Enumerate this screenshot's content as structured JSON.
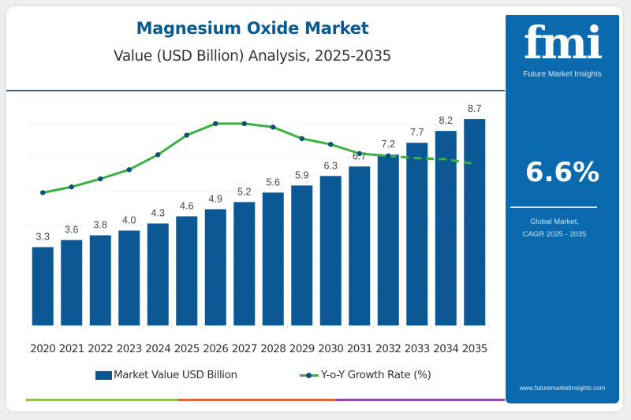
{
  "header": {
    "title": "Magnesium Oxide Market",
    "subtitle": "Value (USD Billion) Analysis, 2025-2035"
  },
  "brand": {
    "logo_text": "fmi",
    "logo_subtitle": "Future Market Insights",
    "website": "www.futuremarketinsights.com",
    "panel_color": "#0b6aae"
  },
  "kpi": {
    "value": "6.6%",
    "label_line1": "Global Market,",
    "label_line2": "CAGR 2025 - 2035"
  },
  "accent_colors": [
    "#8bc34a",
    "#e0673a",
    "#8e44ad"
  ],
  "chart_data": {
    "type": "bar",
    "title": "Magnesium Oxide Market",
    "subtitle": "Value (USD Billion) Analysis, 2025-2035",
    "xlabel": "",
    "ylabel": "",
    "categories": [
      "2020",
      "2021",
      "2022",
      "2023",
      "2024",
      "2025",
      "2026",
      "2027",
      "2028",
      "2029",
      "2030",
      "2031",
      "2032",
      "2033",
      "2034",
      "2035"
    ],
    "series": [
      {
        "name": "Market Value USD Billion",
        "type": "bar",
        "color": "#0b5894",
        "values": [
          3.3,
          3.6,
          3.8,
          4.0,
          4.3,
          4.6,
          4.9,
          5.2,
          5.6,
          5.9,
          6.3,
          6.7,
          7.2,
          7.7,
          8.2,
          8.7
        ],
        "labels": [
          "3.3",
          "3.6",
          "3.8",
          "4.0",
          "4.3",
          "4.6",
          "4.9",
          "5.2",
          "5.6",
          "5.9",
          "6.3",
          "6.7",
          "7.2",
          "7.7",
          "8.2",
          "8.7"
        ]
      },
      {
        "name": "Y-o-Y Growth Rate (%)",
        "type": "line",
        "color": "#3cb043",
        "marker_color": "#0d4f78",
        "relative_values": [
          0.38,
          0.43,
          0.5,
          0.58,
          0.71,
          0.88,
          0.98,
          0.98,
          0.95,
          0.85,
          0.8,
          0.72,
          0.7,
          0.68,
          0.67,
          0.63
        ],
        "dashed_from_index": 12,
        "markers_until_index": 12
      }
    ],
    "ylim": [
      0,
      9.5
    ],
    "grid": true,
    "legend": "bottom"
  }
}
